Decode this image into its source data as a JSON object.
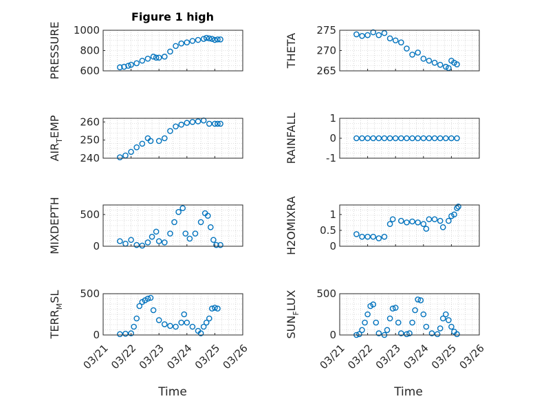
{
  "figure": {
    "title": "Figure 1 high"
  },
  "chart_data": [
    {
      "type": "scatter",
      "id": "pressure",
      "ylabel": "PRESSURE",
      "ylim": [
        600,
        1000
      ],
      "yticks": [
        600,
        800,
        1000
      ],
      "xlim": [
        "03/21",
        "03/26"
      ],
      "xticks": [
        "03/21",
        "03/22",
        "03/23",
        "03/24",
        "03/25",
        "03/26"
      ],
      "grid": true,
      "marker": "open-circle",
      "color": "#0072BD",
      "points": [
        [
          0.6,
          635
        ],
        [
          0.75,
          640
        ],
        [
          0.9,
          650
        ],
        [
          1.0,
          660
        ],
        [
          1.2,
          675
        ],
        [
          1.4,
          700
        ],
        [
          1.6,
          720
        ],
        [
          1.8,
          740
        ],
        [
          1.9,
          730
        ],
        [
          2.0,
          730
        ],
        [
          2.2,
          740
        ],
        [
          2.4,
          790
        ],
        [
          2.6,
          845
        ],
        [
          2.8,
          870
        ],
        [
          3.0,
          880
        ],
        [
          3.2,
          895
        ],
        [
          3.4,
          905
        ],
        [
          3.6,
          915
        ],
        [
          3.7,
          925
        ],
        [
          3.8,
          920
        ],
        [
          3.9,
          915
        ],
        [
          4.0,
          905
        ],
        [
          4.1,
          910
        ],
        [
          4.2,
          910
        ]
      ]
    },
    {
      "type": "scatter",
      "id": "theta",
      "ylabel": "THETA",
      "ylim": [
        265,
        275
      ],
      "yticks": [
        265,
        270,
        275
      ],
      "xlim": [
        "03/21",
        "03/26"
      ],
      "xticks": [
        "03/21",
        "03/22",
        "03/23",
        "03/24",
        "03/25",
        "03/26"
      ],
      "grid": true,
      "marker": "open-circle",
      "color": "#0072BD",
      "points": [
        [
          0.6,
          274
        ],
        [
          0.8,
          273.6
        ],
        [
          1.0,
          273.8
        ],
        [
          1.2,
          274.5
        ],
        [
          1.4,
          273.8
        ],
        [
          1.6,
          274.3
        ],
        [
          1.8,
          273
        ],
        [
          2.0,
          272.5
        ],
        [
          2.2,
          272
        ],
        [
          2.4,
          270.5
        ],
        [
          2.6,
          269
        ],
        [
          2.8,
          269.5
        ],
        [
          3.0,
          268
        ],
        [
          3.2,
          267.5
        ],
        [
          3.4,
          267
        ],
        [
          3.6,
          266.5
        ],
        [
          3.8,
          266
        ],
        [
          3.9,
          265.7
        ],
        [
          4.0,
          267.5
        ],
        [
          4.1,
          267
        ],
        [
          4.2,
          266.6
        ]
      ]
    },
    {
      "type": "scatter",
      "id": "air-temp",
      "ylabel": "AIR_TEMP",
      "ylabel_main": "AIR",
      "ylabel_sub": "T",
      "ylabel_rest": "EMP",
      "ylim": [
        240,
        262
      ],
      "yticks": [
        240,
        250,
        260
      ],
      "xlim": [
        "03/21",
        "03/26"
      ],
      "xticks": [
        "03/21",
        "03/22",
        "03/23",
        "03/24",
        "03/25",
        "03/26"
      ],
      "grid": true,
      "marker": "open-circle",
      "color": "#0072BD",
      "points": [
        [
          0.6,
          240.5
        ],
        [
          0.8,
          241.5
        ],
        [
          1.0,
          243.5
        ],
        [
          1.2,
          246
        ],
        [
          1.4,
          248
        ],
        [
          1.6,
          251
        ],
        [
          1.7,
          249.5
        ],
        [
          2.0,
          249.5
        ],
        [
          2.2,
          251
        ],
        [
          2.4,
          255
        ],
        [
          2.6,
          257.5
        ],
        [
          2.8,
          258.5
        ],
        [
          3.0,
          259.5
        ],
        [
          3.2,
          260
        ],
        [
          3.4,
          260.3
        ],
        [
          3.6,
          260.8
        ],
        [
          3.8,
          259
        ],
        [
          4.0,
          259
        ],
        [
          4.1,
          259
        ],
        [
          4.2,
          259
        ]
      ]
    },
    {
      "type": "scatter",
      "id": "rainfall",
      "ylabel": "RAINFALL",
      "ylim": [
        -1,
        1
      ],
      "yticks": [
        -1,
        0,
        1
      ],
      "xlim": [
        "03/21",
        "03/26"
      ],
      "xticks": [
        "03/21",
        "03/22",
        "03/23",
        "03/24",
        "03/25",
        "03/26"
      ],
      "grid": true,
      "marker": "open-circle",
      "color": "#0072BD",
      "points": [
        [
          0.6,
          0
        ],
        [
          0.8,
          0
        ],
        [
          1.0,
          0
        ],
        [
          1.2,
          0
        ],
        [
          1.4,
          0
        ],
        [
          1.6,
          0
        ],
        [
          1.8,
          0
        ],
        [
          2.0,
          0
        ],
        [
          2.2,
          0
        ],
        [
          2.4,
          0
        ],
        [
          2.6,
          0
        ],
        [
          2.8,
          0
        ],
        [
          3.0,
          0
        ],
        [
          3.2,
          0
        ],
        [
          3.4,
          0
        ],
        [
          3.6,
          0
        ],
        [
          3.8,
          0
        ],
        [
          4.0,
          0
        ],
        [
          4.2,
          0
        ]
      ]
    },
    {
      "type": "scatter",
      "id": "mixdepth",
      "ylabel": "MIXDEPTH",
      "ylim": [
        0,
        650
      ],
      "yticks": [
        0,
        500
      ],
      "xlim": [
        "03/21",
        "03/26"
      ],
      "xticks": [
        "03/21",
        "03/22",
        "03/23",
        "03/24",
        "03/25",
        "03/26"
      ],
      "grid": true,
      "marker": "open-circle",
      "color": "#0072BD",
      "points": [
        [
          0.6,
          80
        ],
        [
          0.8,
          40
        ],
        [
          1.0,
          100
        ],
        [
          1.2,
          20
        ],
        [
          1.4,
          10
        ],
        [
          1.6,
          60
        ],
        [
          1.75,
          150
        ],
        [
          1.9,
          230
        ],
        [
          2.0,
          80
        ],
        [
          2.2,
          60
        ],
        [
          2.4,
          200
        ],
        [
          2.55,
          380
        ],
        [
          2.7,
          540
        ],
        [
          2.85,
          600
        ],
        [
          2.95,
          200
        ],
        [
          3.1,
          120
        ],
        [
          3.3,
          200
        ],
        [
          3.5,
          380
        ],
        [
          3.65,
          520
        ],
        [
          3.75,
          480
        ],
        [
          3.85,
          300
        ],
        [
          3.95,
          100
        ],
        [
          4.05,
          20
        ],
        [
          4.2,
          20
        ]
      ]
    },
    {
      "type": "scatter",
      "id": "h2omixra",
      "ylabel": "H2OMIXRA",
      "ylim": [
        0,
        1.3
      ],
      "yticks": [
        0,
        0.5,
        1
      ],
      "xlim": [
        "03/21",
        "03/26"
      ],
      "xticks": [
        "03/21",
        "03/22",
        "03/23",
        "03/24",
        "03/25",
        "03/26"
      ],
      "grid": true,
      "marker": "open-circle",
      "color": "#0072BD",
      "points": [
        [
          0.6,
          0.38
        ],
        [
          0.8,
          0.3
        ],
        [
          1.0,
          0.3
        ],
        [
          1.2,
          0.3
        ],
        [
          1.4,
          0.25
        ],
        [
          1.6,
          0.3
        ],
        [
          1.8,
          0.7
        ],
        [
          1.9,
          0.85
        ],
        [
          2.2,
          0.8
        ],
        [
          2.4,
          0.75
        ],
        [
          2.6,
          0.78
        ],
        [
          2.8,
          0.75
        ],
        [
          3.0,
          0.7
        ],
        [
          3.1,
          0.55
        ],
        [
          3.2,
          0.85
        ],
        [
          3.4,
          0.85
        ],
        [
          3.6,
          0.8
        ],
        [
          3.7,
          0.6
        ],
        [
          3.9,
          0.8
        ],
        [
          4.0,
          0.95
        ],
        [
          4.1,
          1.0
        ],
        [
          4.2,
          1.2
        ],
        [
          4.25,
          1.25
        ]
      ]
    },
    {
      "type": "scatter",
      "id": "terr-msl",
      "ylabel": "TERR_MSL",
      "ylabel_main": "TERR",
      "ylabel_sub": "M",
      "ylabel_rest": "SL",
      "ylim": [
        0,
        500
      ],
      "yticks": [
        0,
        500
      ],
      "xlim": [
        "03/21",
        "03/26"
      ],
      "xticks": [
        "03/21",
        "03/22",
        "03/23",
        "03/24",
        "03/25",
        "03/26"
      ],
      "grid": true,
      "marker": "open-circle",
      "color": "#0072BD",
      "points": [
        [
          0.6,
          10
        ],
        [
          0.8,
          15
        ],
        [
          1.0,
          20
        ],
        [
          1.1,
          100
        ],
        [
          1.2,
          200
        ],
        [
          1.3,
          350
        ],
        [
          1.4,
          400
        ],
        [
          1.5,
          420
        ],
        [
          1.6,
          440
        ],
        [
          1.7,
          450
        ],
        [
          1.8,
          300
        ],
        [
          2.0,
          180
        ],
        [
          2.2,
          130
        ],
        [
          2.4,
          110
        ],
        [
          2.6,
          100
        ],
        [
          2.8,
          150
        ],
        [
          2.9,
          250
        ],
        [
          3.0,
          150
        ],
        [
          3.2,
          100
        ],
        [
          3.4,
          50
        ],
        [
          3.5,
          20
        ],
        [
          3.6,
          100
        ],
        [
          3.7,
          150
        ],
        [
          3.8,
          200
        ],
        [
          3.9,
          320
        ],
        [
          4.0,
          330
        ],
        [
          4.1,
          320
        ]
      ]
    },
    {
      "type": "scatter",
      "id": "sun-flux",
      "ylabel": "SUN_FLUX",
      "ylabel_main": "SUN",
      "ylabel_sub": "F",
      "ylabel_rest": "LUX",
      "ylim": [
        0,
        500
      ],
      "yticks": [
        0,
        500
      ],
      "xlim": [
        "03/21",
        "03/26"
      ],
      "xticks": [
        "03/21",
        "03/22",
        "03/23",
        "03/24",
        "03/25",
        "03/26"
      ],
      "grid": true,
      "marker": "open-circle",
      "color": "#0072BD",
      "points": [
        [
          0.6,
          0
        ],
        [
          0.7,
          10
        ],
        [
          0.8,
          60
        ],
        [
          0.9,
          150
        ],
        [
          1.0,
          250
        ],
        [
          1.1,
          350
        ],
        [
          1.2,
          370
        ],
        [
          1.3,
          150
        ],
        [
          1.4,
          20
        ],
        [
          1.6,
          0
        ],
        [
          1.7,
          60
        ],
        [
          1.8,
          200
        ],
        [
          1.9,
          320
        ],
        [
          2.0,
          330
        ],
        [
          2.1,
          150
        ],
        [
          2.2,
          20
        ],
        [
          2.4,
          10
        ],
        [
          2.5,
          20
        ],
        [
          2.6,
          150
        ],
        [
          2.7,
          300
        ],
        [
          2.8,
          430
        ],
        [
          2.9,
          420
        ],
        [
          3.0,
          250
        ],
        [
          3.1,
          100
        ],
        [
          3.3,
          20
        ],
        [
          3.5,
          10
        ],
        [
          3.6,
          80
        ],
        [
          3.7,
          200
        ],
        [
          3.8,
          250
        ],
        [
          3.9,
          180
        ],
        [
          4.0,
          100
        ],
        [
          4.1,
          40
        ],
        [
          4.2,
          10
        ]
      ]
    }
  ],
  "xlabel": "Time"
}
